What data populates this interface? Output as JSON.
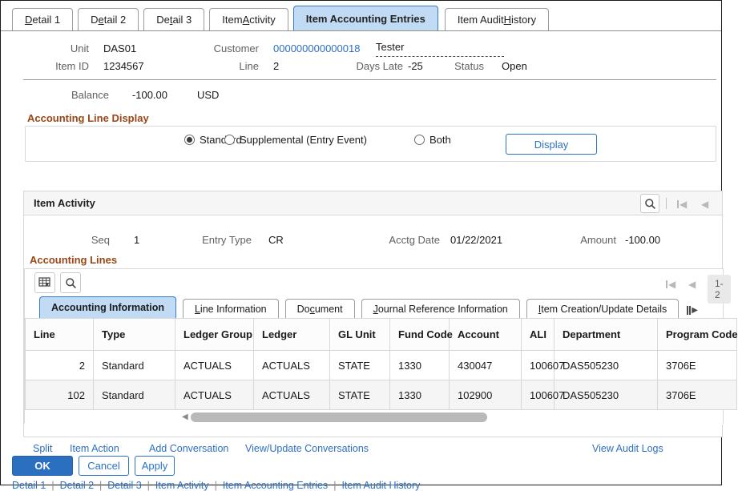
{
  "page_tabs": [
    {
      "label": "Detail 1",
      "u": 0,
      "active": false
    },
    {
      "label": "Detail 2",
      "u": 1,
      "active": false
    },
    {
      "label": "Detail 3",
      "u": 2,
      "active": false
    },
    {
      "label": "Item Activity",
      "u": 5,
      "active": false
    },
    {
      "label": "Item Accounting Entries",
      "u": -1,
      "active": true
    },
    {
      "label": "Item Audit History",
      "u": 11,
      "active": false
    }
  ],
  "header": {
    "unit_label": "Unit",
    "unit": "DAS01",
    "customer_label": "Customer",
    "customer": "000000000000018",
    "customer_name": "Tester",
    "item_id_label": "Item ID",
    "item_id": "1234567",
    "line_label": "Line",
    "line": "2",
    "days_late_label": "Days Late",
    "days_late": "-25",
    "status_label": "Status",
    "status": "Open",
    "balance_label": "Balance",
    "balance": "-100.00",
    "currency": "USD"
  },
  "accounting_line_display": {
    "heading": "Accounting Line Display",
    "options": [
      {
        "label": "Standard",
        "selected": true
      },
      {
        "label": "Supplemental (Entry Event)",
        "selected": false
      },
      {
        "label": "Both",
        "selected": false
      }
    ],
    "display_button": "Display"
  },
  "item_activity": {
    "title": "Item Activity",
    "seq_label": "Seq",
    "seq": "1",
    "entry_type_label": "Entry Type",
    "entry_type": "CR",
    "acctg_date_label": "Acctg Date",
    "acctg_date": "01/22/2021",
    "amount_label": "Amount",
    "amount": "-100.00"
  },
  "accounting_lines": {
    "heading": "Accounting Lines",
    "pager": "1-2",
    "tabs": [
      {
        "label": "Accounting Information",
        "u": -1,
        "active": true
      },
      {
        "label": "Line Information",
        "u": 0,
        "active": false
      },
      {
        "label": "Document",
        "u": 2,
        "active": false
      },
      {
        "label": "Journal Reference Information",
        "u": 0,
        "active": false
      },
      {
        "label": "Item Creation/Update Details",
        "u": 0,
        "active": false
      }
    ],
    "columns": [
      "Line",
      "Type",
      "Ledger Group",
      "Ledger",
      "GL Unit",
      "Fund Code",
      "Account",
      "ALI",
      "Department",
      "Program Code"
    ],
    "rows": [
      [
        "2",
        "Standard",
        "ACTUALS",
        "ACTUALS",
        "STATE",
        "1330",
        "430047",
        "100607",
        "DAS505230",
        "3706E"
      ],
      [
        "102",
        "Standard",
        "ACTUALS",
        "ACTUALS",
        "STATE",
        "1330",
        "102900",
        "100607",
        "DAS505230",
        "3706E"
      ]
    ]
  },
  "actions": {
    "split": "Split",
    "item_action": "Item Action",
    "add_conversation": "Add Conversation",
    "view_update_conversations": "View/Update Conversations",
    "view_audit_logs": "View Audit Logs",
    "ok": "OK",
    "cancel": "Cancel",
    "apply": "Apply"
  },
  "footer_links": [
    "Detail 1",
    "Detail 2",
    "Detail 3",
    "Item Activity",
    "Item Accounting Entries",
    "Item Audit History"
  ],
  "colors": {
    "accent_blue": "#2b6fc0",
    "link_blue": "#2e6fc2",
    "heading_maroon": "#9a4616",
    "active_tab_bg": "#c2dbf4"
  }
}
